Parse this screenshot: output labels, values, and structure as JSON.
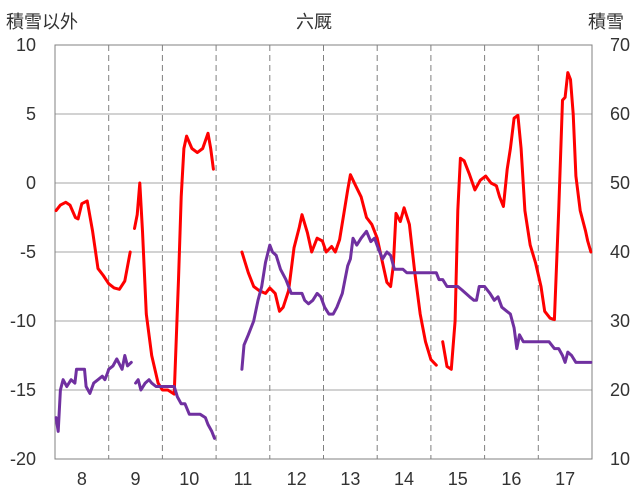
{
  "chart_data": {
    "type": "line",
    "title": "六厩",
    "y_left_label": "積雪以外",
    "y_right_label": "積雪",
    "ylim_left": [
      -20,
      10
    ],
    "ylim_right": [
      10,
      70
    ],
    "yticks_left": [
      "10",
      "5",
      "0",
      "-5",
      "-10",
      "-15",
      "-20"
    ],
    "yticks_right": [
      "70",
      "60",
      "50",
      "40",
      "30",
      "20",
      "10"
    ],
    "xlim": [
      7.5,
      17.5
    ],
    "x_categories": [
      "8",
      "9",
      "10",
      "11",
      "12",
      "13",
      "14",
      "15",
      "16",
      "17"
    ],
    "grid": true,
    "colors": {
      "temp": "#ff0000",
      "snow": "#7030a0"
    },
    "series": [
      {
        "axis": "left",
        "color": "#ff0000",
        "segments": [
          [
            [
              7.52,
              -2.0
            ],
            [
              7.6,
              -1.6
            ],
            [
              7.7,
              -1.4
            ],
            [
              7.78,
              -1.6
            ],
            [
              7.88,
              -2.5
            ],
            [
              7.93,
              -2.6
            ],
            [
              8.0,
              -1.5
            ],
            [
              8.1,
              -1.3
            ],
            [
              8.2,
              -3.5
            ],
            [
              8.3,
              -6.2
            ],
            [
              8.4,
              -6.7
            ],
            [
              8.5,
              -7.3
            ],
            [
              8.6,
              -7.6
            ],
            [
              8.7,
              -7.7
            ],
            [
              8.8,
              -7.1
            ],
            [
              8.9,
              -5.0
            ]
          ],
          [
            [
              8.98,
              -3.3
            ],
            [
              9.03,
              -2.3
            ],
            [
              9.08,
              0.0
            ],
            [
              9.13,
              -3.5
            ],
            [
              9.2,
              -9.5
            ],
            [
              9.3,
              -12.5
            ],
            [
              9.42,
              -14.5
            ],
            [
              9.5,
              -15.0
            ],
            [
              9.6,
              -15.0
            ],
            [
              9.72,
              -15.3
            ],
            [
              9.8,
              -7.0
            ],
            [
              9.85,
              -1.0
            ],
            [
              9.9,
              2.5
            ],
            [
              9.95,
              3.4
            ],
            [
              10.05,
              2.5
            ],
            [
              10.15,
              2.2
            ],
            [
              10.25,
              2.5
            ],
            [
              10.35,
              3.6
            ],
            [
              10.4,
              2.5
            ],
            [
              10.45,
              1.0
            ]
          ],
          [
            [
              10.98,
              -5.0
            ],
            [
              11.1,
              -6.5
            ],
            [
              11.2,
              -7.5
            ],
            [
              11.3,
              -7.8
            ],
            [
              11.42,
              -8.0
            ],
            [
              11.5,
              -7.6
            ],
            [
              11.6,
              -8.0
            ],
            [
              11.68,
              -9.3
            ],
            [
              11.75,
              -9.0
            ],
            [
              11.85,
              -7.8
            ],
            [
              11.95,
              -4.7
            ],
            [
              12.05,
              -3.2
            ],
            [
              12.1,
              -2.3
            ],
            [
              12.2,
              -3.6
            ],
            [
              12.28,
              -5.0
            ],
            [
              12.38,
              -4.0
            ],
            [
              12.48,
              -4.2
            ],
            [
              12.55,
              -5.0
            ],
            [
              12.65,
              -4.6
            ],
            [
              12.72,
              -5.0
            ],
            [
              12.8,
              -4.1
            ],
            [
              12.88,
              -2.2
            ],
            [
              12.95,
              -0.5
            ],
            [
              13.0,
              0.6
            ],
            [
              13.1,
              -0.2
            ],
            [
              13.2,
              -1.0
            ],
            [
              13.3,
              -2.5
            ],
            [
              13.4,
              -3.0
            ],
            [
              13.5,
              -4.0
            ],
            [
              13.6,
              -5.8
            ],
            [
              13.68,
              -7.2
            ],
            [
              13.75,
              -7.5
            ],
            [
              13.8,
              -6.0
            ],
            [
              13.85,
              -2.2
            ],
            [
              13.93,
              -2.8
            ],
            [
              14.0,
              -1.8
            ],
            [
              14.1,
              -3.0
            ],
            [
              14.2,
              -6.5
            ],
            [
              14.3,
              -9.5
            ],
            [
              14.4,
              -11.5
            ],
            [
              14.5,
              -12.8
            ],
            [
              14.6,
              -13.2
            ]
          ],
          [
            [
              14.72,
              -11.5
            ],
            [
              14.8,
              -13.3
            ],
            [
              14.88,
              -13.5
            ],
            [
              14.95,
              -10.0
            ],
            [
              15.0,
              -2.0
            ],
            [
              15.05,
              1.8
            ],
            [
              15.12,
              1.6
            ],
            [
              15.22,
              0.6
            ],
            [
              15.32,
              -0.5
            ],
            [
              15.42,
              0.2
            ],
            [
              15.52,
              0.5
            ],
            [
              15.62,
              0.0
            ],
            [
              15.72,
              -0.2
            ],
            [
              15.78,
              -1.0
            ],
            [
              15.85,
              -1.7
            ],
            [
              15.92,
              1.0
            ],
            [
              15.98,
              2.5
            ],
            [
              16.05,
              4.7
            ],
            [
              16.12,
              4.9
            ],
            [
              16.18,
              2.5
            ],
            [
              16.25,
              -2.0
            ],
            [
              16.35,
              -4.5
            ],
            [
              16.45,
              -5.8
            ],
            [
              16.55,
              -7.5
            ],
            [
              16.62,
              -9.3
            ],
            [
              16.72,
              -9.8
            ],
            [
              16.8,
              -9.9
            ],
            [
              16.88,
              -2.0
            ],
            [
              16.95,
              6.0
            ],
            [
              17.0,
              6.2
            ],
            [
              17.05,
              8.0
            ],
            [
              17.1,
              7.5
            ],
            [
              17.15,
              5.0
            ],
            [
              17.2,
              0.5
            ],
            [
              17.28,
              -2.0
            ],
            [
              17.38,
              -3.5
            ],
            [
              17.42,
              -4.2
            ],
            [
              17.48,
              -5.0
            ]
          ]
        ]
      },
      {
        "axis": "right",
        "color": "#7030a0",
        "segments": [
          [
            [
              7.52,
              16.0
            ],
            [
              7.56,
              14.0
            ],
            [
              7.6,
              20.0
            ],
            [
              7.65,
              21.5
            ],
            [
              7.72,
              20.5
            ],
            [
              7.8,
              21.5
            ],
            [
              7.87,
              21.0
            ],
            [
              7.9,
              23.0
            ],
            [
              8.0,
              23.0
            ],
            [
              8.05,
              23.0
            ],
            [
              8.08,
              20.5
            ],
            [
              8.15,
              19.5
            ],
            [
              8.22,
              21.0
            ],
            [
              8.3,
              21.5
            ],
            [
              8.38,
              22.0
            ],
            [
              8.43,
              21.5
            ],
            [
              8.48,
              22.5
            ],
            [
              8.5,
              23.0
            ],
            [
              8.58,
              23.5
            ],
            [
              8.65,
              24.5
            ],
            [
              8.75,
              23.0
            ],
            [
              8.8,
              25.0
            ],
            [
              8.85,
              23.5
            ],
            [
              8.92,
              24.0
            ]
          ],
          [
            [
              9.0,
              21.0
            ],
            [
              9.05,
              21.5
            ],
            [
              9.1,
              20.0
            ],
            [
              9.18,
              21.0
            ],
            [
              9.25,
              21.5
            ],
            [
              9.3,
              21.0
            ],
            [
              9.38,
              20.5
            ],
            [
              9.42,
              20.5
            ],
            [
              9.5,
              20.5
            ],
            [
              9.6,
              20.5
            ],
            [
              9.72,
              20.5
            ],
            [
              9.78,
              19.0
            ],
            [
              9.85,
              18.0
            ],
            [
              9.92,
              18.0
            ],
            [
              10.0,
              16.5
            ],
            [
              10.1,
              16.5
            ],
            [
              10.2,
              16.5
            ],
            [
              10.3,
              16.0
            ],
            [
              10.35,
              15.0
            ],
            [
              10.42,
              14.0
            ],
            [
              10.47,
              13.0
            ]
          ],
          [
            [
              10.98,
              23.0
            ],
            [
              11.02,
              26.5
            ],
            [
              11.1,
              28.0
            ],
            [
              11.2,
              30.0
            ],
            [
              11.28,
              33.0
            ],
            [
              11.35,
              35.0
            ],
            [
              11.42,
              38.5
            ],
            [
              11.5,
              41.0
            ],
            [
              11.55,
              40.0
            ],
            [
              11.62,
              39.5
            ],
            [
              11.7,
              37.5
            ],
            [
              11.8,
              36.0
            ],
            [
              11.9,
              34.0
            ],
            [
              12.0,
              34.0
            ],
            [
              12.1,
              34.0
            ],
            [
              12.15,
              33.0
            ],
            [
              12.22,
              32.5
            ],
            [
              12.3,
              33.0
            ],
            [
              12.38,
              34.0
            ],
            [
              12.45,
              33.5
            ],
            [
              12.52,
              32.0
            ],
            [
              12.6,
              31.0
            ],
            [
              12.68,
              31.0
            ],
            [
              12.75,
              32.0
            ],
            [
              12.85,
              34.0
            ],
            [
              12.9,
              36.0
            ],
            [
              12.95,
              38.0
            ],
            [
              13.0,
              39.0
            ],
            [
              13.05,
              42.0
            ],
            [
              13.12,
              41.0
            ],
            [
              13.2,
              42.0
            ],
            [
              13.3,
              43.0
            ],
            [
              13.38,
              41.5
            ],
            [
              13.45,
              42.0
            ],
            [
              13.52,
              40.5
            ],
            [
              13.6,
              39.0
            ],
            [
              13.68,
              40.0
            ],
            [
              13.75,
              39.5
            ],
            [
              13.82,
              37.5
            ],
            [
              13.9,
              37.5
            ],
            [
              13.98,
              37.5
            ],
            [
              14.05,
              37.0
            ],
            [
              14.12,
              37.0
            ],
            [
              14.2,
              37.0
            ],
            [
              14.3,
              37.0
            ],
            [
              14.42,
              37.0
            ],
            [
              14.52,
              37.0
            ],
            [
              14.6,
              37.0
            ],
            [
              14.65,
              36.0
            ],
            [
              14.72,
              36.0
            ],
            [
              14.8,
              35.0
            ],
            [
              14.9,
              35.0
            ],
            [
              15.0,
              35.0
            ],
            [
              15.08,
              34.5
            ],
            [
              15.15,
              34.0
            ],
            [
              15.22,
              33.5
            ],
            [
              15.3,
              33.0
            ],
            [
              15.35,
              33.0
            ],
            [
              15.4,
              35.0
            ],
            [
              15.5,
              35.0
            ],
            [
              15.6,
              34.0
            ],
            [
              15.68,
              33.0
            ],
            [
              15.75,
              33.5
            ],
            [
              15.82,
              32.0
            ],
            [
              15.9,
              31.5
            ],
            [
              15.98,
              31.0
            ],
            [
              16.05,
              29.0
            ],
            [
              16.1,
              26.0
            ],
            [
              16.15,
              28.0
            ],
            [
              16.22,
              27.0
            ],
            [
              16.3,
              27.0
            ],
            [
              16.4,
              27.0
            ],
            [
              16.5,
              27.0
            ],
            [
              16.6,
              27.0
            ],
            [
              16.7,
              27.0
            ],
            [
              16.8,
              26.0
            ],
            [
              16.88,
              26.0
            ],
            [
              16.95,
              25.0
            ],
            [
              17.0,
              24.0
            ],
            [
              17.05,
              25.5
            ],
            [
              17.12,
              25.0
            ],
            [
              17.2,
              24.0
            ],
            [
              17.3,
              24.0
            ],
            [
              17.4,
              24.0
            ],
            [
              17.48,
              24.0
            ]
          ]
        ]
      }
    ]
  }
}
